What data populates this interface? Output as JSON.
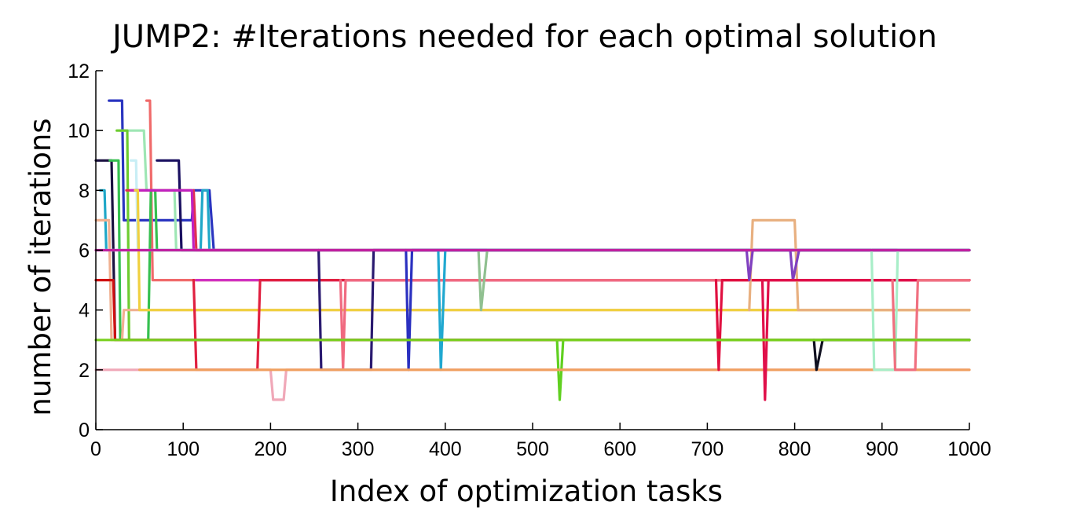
{
  "chart_data": {
    "type": "line",
    "title": "JUMP2: #Iterations needed for each optimal solution",
    "xlabel": "Index of optimization tasks",
    "ylabel": "number of iterations",
    "xlim": [
      0,
      1000
    ],
    "ylim": [
      0,
      12
    ],
    "xticks": [
      0,
      100,
      200,
      300,
      400,
      500,
      600,
      700,
      800,
      900,
      1000
    ],
    "yticks": [
      0,
      2,
      4,
      6,
      8,
      10,
      12
    ],
    "grid": false,
    "legend": "none",
    "series": [
      {
        "color": "#2a35c0",
        "points": [
          [
            15,
            11
          ],
          [
            30,
            11
          ],
          [
            32,
            7
          ],
          [
            110,
            7
          ],
          [
            112,
            8
          ],
          [
            130,
            8
          ],
          [
            135,
            6
          ],
          [
            1000,
            6
          ]
        ]
      },
      {
        "color": "#f06a6a",
        "points": [
          [
            58,
            11
          ],
          [
            62,
            11
          ],
          [
            65,
            5
          ],
          [
            1000,
            5
          ]
        ]
      },
      {
        "color": "#9ee6b4",
        "points": [
          [
            28,
            10
          ],
          [
            55,
            10
          ],
          [
            58,
            8
          ],
          [
            90,
            8
          ],
          [
            92,
            6
          ],
          [
            1000,
            6
          ]
        ]
      },
      {
        "color": "#6dcc30",
        "points": [
          [
            24,
            10
          ],
          [
            36,
            10
          ],
          [
            38,
            3
          ],
          [
            1000,
            3
          ]
        ]
      },
      {
        "color": "#1a1040",
        "points": [
          [
            0,
            9
          ],
          [
            18,
            9
          ],
          [
            22,
            3
          ],
          [
            1000,
            3
          ]
        ]
      },
      {
        "color": "#c8eef5",
        "points": [
          [
            40,
            9
          ],
          [
            46,
            9
          ],
          [
            48,
            6
          ],
          [
            1000,
            6
          ]
        ]
      },
      {
        "color": "#1a1060",
        "points": [
          [
            70,
            9
          ],
          [
            95,
            9
          ],
          [
            98,
            6
          ],
          [
            1000,
            6
          ]
        ]
      },
      {
        "color": "#36c050",
        "points": [
          [
            16,
            9
          ],
          [
            26,
            9
          ],
          [
            28,
            3
          ],
          [
            60,
            3
          ],
          [
            63,
            8
          ],
          [
            68,
            8
          ],
          [
            70,
            6
          ],
          [
            1000,
            6
          ]
        ]
      },
      {
        "color": "#20a8c8",
        "points": [
          [
            5,
            8
          ],
          [
            10,
            8
          ],
          [
            12,
            6
          ],
          [
            120,
            6
          ],
          [
            122,
            8
          ],
          [
            128,
            8
          ],
          [
            130,
            6
          ],
          [
            1000,
            6
          ]
        ]
      },
      {
        "color": "#e03050",
        "points": [
          [
            35,
            8
          ],
          [
            112,
            8
          ],
          [
            115,
            6
          ],
          [
            1000,
            6
          ]
        ]
      },
      {
        "color": "#c020c0",
        "points": [
          [
            40,
            8
          ],
          [
            110,
            8
          ],
          [
            112,
            6
          ],
          [
            1000,
            6
          ]
        ]
      },
      {
        "color": "#f0b090",
        "points": [
          [
            0,
            7
          ],
          [
            15,
            7
          ],
          [
            18,
            3
          ],
          [
            30,
            3
          ],
          [
            32,
            4
          ],
          [
            1000,
            4
          ]
        ]
      },
      {
        "color": "#ffffff",
        "points": [
          [
            0,
            6
          ],
          [
            1000,
            6
          ]
        ]
      },
      {
        "color": "#d01010",
        "points": [
          [
            0,
            5
          ],
          [
            20,
            5
          ],
          [
            22,
            3
          ],
          [
            1000,
            3
          ]
        ]
      },
      {
        "color": "#f0d040",
        "points": [
          [
            45,
            8
          ],
          [
            48,
            8
          ],
          [
            50,
            4
          ],
          [
            1000,
            4
          ]
        ]
      },
      {
        "color": "#d030c0",
        "points": [
          [
            115,
            5
          ],
          [
            1000,
            5
          ]
        ]
      },
      {
        "color": "#e02040",
        "points": [
          [
            112,
            5
          ],
          [
            115,
            2
          ],
          [
            185,
            2
          ],
          [
            188,
            5
          ],
          [
            1000,
            5
          ]
        ]
      },
      {
        "color": "#2a1a70",
        "points": [
          [
            255,
            6
          ],
          [
            258,
            2
          ],
          [
            315,
            2
          ],
          [
            318,
            6
          ],
          [
            1000,
            6
          ]
        ]
      },
      {
        "color": "#f06a80",
        "points": [
          [
            280,
            5
          ],
          [
            283,
            2
          ],
          [
            286,
            5
          ],
          [
            1000,
            5
          ]
        ]
      },
      {
        "color": "#f0a8b8",
        "points": [
          [
            0,
            2
          ],
          [
            200,
            2
          ],
          [
            203,
            1
          ],
          [
            215,
            1
          ],
          [
            218,
            2
          ],
          [
            1000,
            2
          ]
        ]
      },
      {
        "color": "#2a30c0",
        "points": [
          [
            355,
            6
          ],
          [
            358,
            2
          ],
          [
            362,
            6
          ],
          [
            1000,
            6
          ]
        ]
      },
      {
        "color": "#20a8d0",
        "points": [
          [
            392,
            6
          ],
          [
            395,
            2
          ],
          [
            400,
            6
          ],
          [
            1000,
            6
          ]
        ]
      },
      {
        "color": "#90c090",
        "points": [
          [
            438,
            6
          ],
          [
            441,
            4
          ],
          [
            448,
            6
          ],
          [
            1000,
            6
          ]
        ]
      },
      {
        "color": "#60d020",
        "points": [
          [
            528,
            3
          ],
          [
            531,
            1
          ],
          [
            535,
            3
          ],
          [
            1000,
            3
          ]
        ]
      },
      {
        "color": "#f0a060",
        "points": [
          [
            50,
            2
          ],
          [
            1000,
            2
          ]
        ]
      },
      {
        "color": "#e01040",
        "points": [
          [
            710,
            5
          ],
          [
            713,
            2
          ],
          [
            717,
            5
          ],
          [
            1000,
            5
          ]
        ]
      },
      {
        "color": "#e8b080",
        "points": [
          [
            748,
            4
          ],
          [
            752,
            7
          ],
          [
            800,
            7
          ],
          [
            804,
            4
          ],
          [
            1000,
            4
          ]
        ]
      },
      {
        "color": "#8040c0",
        "points": [
          [
            745,
            6
          ],
          [
            748,
            5
          ],
          [
            752,
            6
          ],
          [
            795,
            6
          ],
          [
            798,
            5
          ],
          [
            805,
            6
          ],
          [
            1000,
            6
          ]
        ]
      },
      {
        "color": "#e0104a",
        "points": [
          [
            763,
            5
          ],
          [
            766,
            1
          ],
          [
            770,
            5
          ],
          [
            1000,
            5
          ]
        ]
      },
      {
        "color": "#101020",
        "points": [
          [
            822,
            3
          ],
          [
            825,
            2
          ],
          [
            832,
            3
          ],
          [
            1000,
            3
          ]
        ]
      },
      {
        "color": "#a8eec8",
        "points": [
          [
            888,
            6
          ],
          [
            891,
            2
          ],
          [
            915,
            2
          ],
          [
            918,
            6
          ],
          [
            1000,
            6
          ]
        ]
      },
      {
        "color": "#f07080",
        "points": [
          [
            912,
            5
          ],
          [
            915,
            2
          ],
          [
            938,
            2
          ],
          [
            941,
            5
          ],
          [
            1000,
            5
          ]
        ]
      },
      {
        "color": "#7ad020",
        "points": [
          [
            0,
            3
          ],
          [
            1000,
            3
          ]
        ]
      },
      {
        "color": "#c020a0",
        "points": [
          [
            0,
            6
          ],
          [
            1000,
            6
          ]
        ]
      }
    ]
  }
}
